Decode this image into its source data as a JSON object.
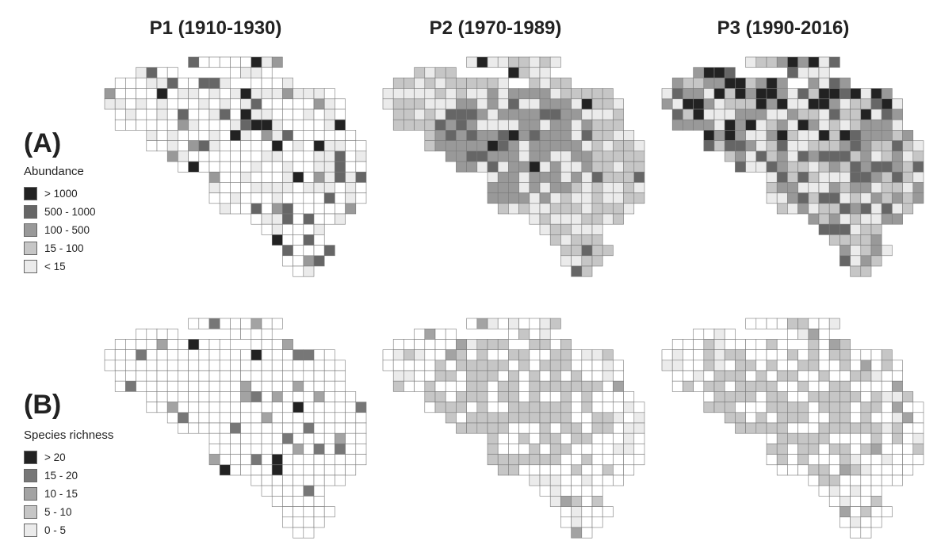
{
  "period_titles": [
    "P1 (1910-1930)",
    "P2 (1970-1989)",
    "P3 (1990-2016)"
  ],
  "rows": [
    {
      "label": "(A)",
      "legend_title": "Abundance",
      "classes": [
        {
          "label": "> 1000",
          "color": "#222222"
        },
        {
          "label": "500 - 1000",
          "color": "#666666"
        },
        {
          "label": "100 - 500",
          "color": "#999999"
        },
        {
          "label": "15 - 100",
          "color": "#c6c6c6"
        },
        {
          "label": "< 15",
          "color": "#ebebeb"
        }
      ]
    },
    {
      "label": "(B)",
      "legend_title": "Species richness",
      "classes": [
        {
          "label": "> 20",
          "color": "#222222"
        },
        {
          "label": "15 - 20",
          "color": "#777777"
        },
        {
          "label": "10 - 15",
          "color": "#a3a3a3"
        },
        {
          "label": "5 - 10",
          "color": "#c6c6c6"
        },
        {
          "label": "0 - 5",
          "color": "#ebebeb"
        }
      ]
    }
  ],
  "colors": {
    "empty_cell": "#ffffff",
    "cell_border": "#7a7a7a"
  }
}
